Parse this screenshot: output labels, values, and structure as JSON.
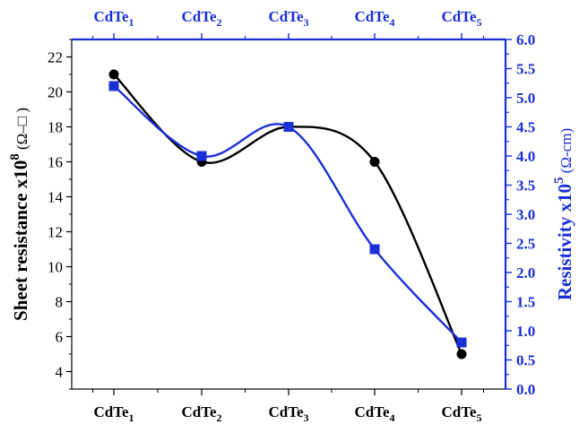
{
  "chart_data": {
    "type": "line",
    "categories": [
      "CdTe1",
      "CdTe2",
      "CdTe3",
      "CdTe4",
      "CdTe5"
    ],
    "category_labels": [
      {
        "base": "CdTe",
        "sub": "1"
      },
      {
        "base": "CdTe",
        "sub": "2"
      },
      {
        "base": "CdTe",
        "sub": "3"
      },
      {
        "base": "CdTe",
        "sub": "4"
      },
      {
        "base": "CdTe",
        "sub": "5"
      }
    ],
    "ylabel_left": {
      "main": "Sheet resistance x10",
      "sup": "8",
      "unit": " (Ω–□ )"
    },
    "ylabel_right": {
      "main": "Resistivity x10",
      "sup": "5",
      "unit": " (Ω-cm)"
    },
    "ylim_left": [
      3,
      23
    ],
    "yticks_left": [
      4,
      6,
      8,
      10,
      12,
      14,
      16,
      18,
      20,
      22
    ],
    "ylim_right": [
      0,
      6
    ],
    "yticks_right": [
      0.0,
      0.5,
      1.0,
      1.5,
      2.0,
      2.5,
      3.0,
      3.5,
      4.0,
      4.5,
      5.0,
      5.5,
      6.0
    ],
    "series": [
      {
        "axis": "left",
        "color": "#000000",
        "marker": "circle",
        "values": [
          21,
          16,
          18,
          16,
          5
        ]
      },
      {
        "axis": "right",
        "color": "#1a2fd6",
        "marker": "square",
        "values": [
          5.2,
          4.0,
          4.5,
          2.4,
          0.8
        ]
      }
    ],
    "grid": false,
    "legend": "none"
  }
}
